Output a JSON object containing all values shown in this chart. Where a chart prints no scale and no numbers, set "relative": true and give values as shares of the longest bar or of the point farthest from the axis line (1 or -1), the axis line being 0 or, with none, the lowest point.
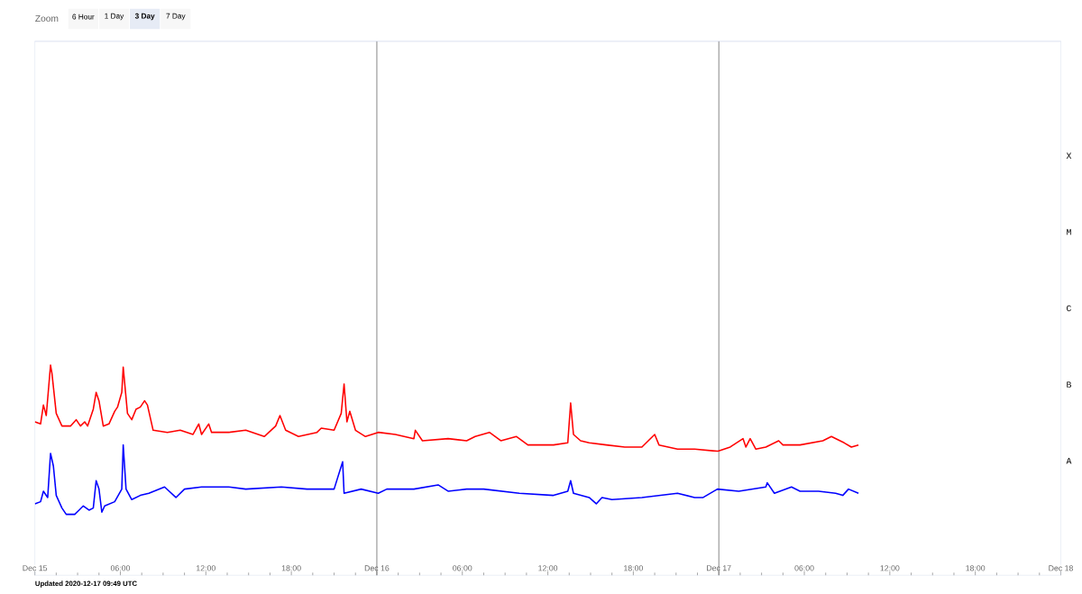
{
  "chart_data": {
    "type": "line",
    "relative": true,
    "marker": "none",
    "line_style": "solid",
    "xlim": [
      "2020-12-15T00:00",
      "2020-12-18T00:00"
    ],
    "xticks": [
      {
        "value": "2020-12-15T00:00",
        "label": "Dec 15"
      },
      {
        "value": "2020-12-15T06:00",
        "label": "06:00"
      },
      {
        "value": "2020-12-15T12:00",
        "label": "12:00"
      },
      {
        "value": "2020-12-15T18:00",
        "label": "18:00"
      },
      {
        "value": "2020-12-16T00:00",
        "label": "Dec 16"
      },
      {
        "value": "2020-12-16T06:00",
        "label": "06:00"
      },
      {
        "value": "2020-12-16T12:00",
        "label": "12:00"
      },
      {
        "value": "2020-12-16T18:00",
        "label": "18:00"
      },
      {
        "value": "2020-12-17T00:00",
        "label": "Dec 17"
      },
      {
        "value": "2020-12-17T06:00",
        "label": "06:00"
      },
      {
        "value": "2020-12-17T12:00",
        "label": "12:00"
      },
      {
        "value": "2020-12-17T18:00",
        "label": "18:00"
      },
      {
        "value": "2020-12-18T00:00",
        "label": "Dec 18"
      }
    ],
    "ref_lines": [
      {
        "axis": "x",
        "value": "2020-12-16T00:00",
        "color": "#666666"
      },
      {
        "axis": "x",
        "value": "2020-12-17T00:00",
        "color": "#666666"
      }
    ],
    "annotations": [
      "Zoom",
      "6 Hour",
      "1 Day",
      "3 Day",
      "7 Day",
      "Updated 2020-12-17 09:49 UTC",
      "A",
      "B",
      "C",
      "M",
      "X"
    ],
    "series": [
      {
        "color": "#ff0000",
        "x": [
          "2020-12-15T00:00",
          "2020-12-15T00:24",
          "2020-12-15T00:36",
          "2020-12-15T00:48",
          "2020-12-15T01:06",
          "2020-12-15T01:12",
          "2020-12-15T01:30",
          "2020-12-15T01:54",
          "2020-12-15T02:30",
          "2020-12-15T02:54",
          "2020-12-15T03:12",
          "2020-12-15T03:30",
          "2020-12-15T03:42",
          "2020-12-15T04:06",
          "2020-12-15T04:18",
          "2020-12-15T04:30",
          "2020-12-15T04:48",
          "2020-12-15T05:12",
          "2020-12-15T05:36",
          "2020-12-15T05:48",
          "2020-12-15T06:06",
          "2020-12-15T06:12",
          "2020-12-15T06:30",
          "2020-12-15T06:48",
          "2020-12-15T07:06",
          "2020-12-15T07:24",
          "2020-12-15T07:42",
          "2020-12-15T07:54",
          "2020-12-15T08:18",
          "2020-12-15T09:18",
          "2020-12-15T10:12",
          "2020-12-15T11:06",
          "2020-12-15T11:30",
          "2020-12-15T11:42",
          "2020-12-15T12:12",
          "2020-12-15T12:24",
          "2020-12-15T13:36",
          "2020-12-15T14:48",
          "2020-12-15T16:06",
          "2020-12-15T16:54",
          "2020-12-15T17:12",
          "2020-12-15T17:36",
          "2020-12-15T18:30",
          "2020-12-15T19:48",
          "2020-12-15T20:06",
          "2020-12-15T21:00",
          "2020-12-15T21:30",
          "2020-12-15T21:42",
          "2020-12-15T21:54",
          "2020-12-15T22:06",
          "2020-12-15T22:30",
          "2020-12-15T23:12",
          "2020-12-16T00:06",
          "2020-12-16T01:18",
          "2020-12-16T02:36",
          "2020-12-16T02:42",
          "2020-12-16T03:12",
          "2020-12-16T05:00",
          "2020-12-16T06:18",
          "2020-12-16T06:54",
          "2020-12-16T07:54",
          "2020-12-16T08:42",
          "2020-12-16T09:48",
          "2020-12-16T10:36",
          "2020-12-16T12:24",
          "2020-12-16T13:24",
          "2020-12-16T13:36",
          "2020-12-16T13:48",
          "2020-12-16T14:18",
          "2020-12-16T14:54",
          "2020-12-16T16:06",
          "2020-12-16T17:24",
          "2020-12-16T18:36",
          "2020-12-16T19:30",
          "2020-12-16T19:48",
          "2020-12-16T21:06",
          "2020-12-16T22:18",
          "2020-12-16T23:54",
          "2020-12-17T00:48",
          "2020-12-17T01:42",
          "2020-12-17T01:54",
          "2020-12-17T02:12",
          "2020-12-17T02:36",
          "2020-12-17T03:18",
          "2020-12-17T04:12",
          "2020-12-17T04:30",
          "2020-12-17T05:42",
          "2020-12-17T07:18",
          "2020-12-17T07:54",
          "2020-12-17T08:48",
          "2020-12-17T09:18",
          "2020-12-17T09:48"
        ],
        "values": [
          0.73,
          0.72,
          0.81,
          0.76,
          1.0,
          0.96,
          0.77,
          0.71,
          0.71,
          0.74,
          0.71,
          0.73,
          0.71,
          0.79,
          0.87,
          0.83,
          0.71,
          0.72,
          0.78,
          0.8,
          0.87,
          0.99,
          0.77,
          0.74,
          0.79,
          0.8,
          0.83,
          0.81,
          0.69,
          0.68,
          0.69,
          0.67,
          0.72,
          0.67,
          0.72,
          0.68,
          0.68,
          0.69,
          0.66,
          0.71,
          0.76,
          0.69,
          0.66,
          0.68,
          0.7,
          0.69,
          0.77,
          0.91,
          0.73,
          0.78,
          0.69,
          0.66,
          0.68,
          0.67,
          0.65,
          0.69,
          0.64,
          0.65,
          0.64,
          0.66,
          0.68,
          0.64,
          0.66,
          0.62,
          0.62,
          0.63,
          0.82,
          0.67,
          0.64,
          0.63,
          0.62,
          0.61,
          0.61,
          0.67,
          0.62,
          0.6,
          0.6,
          0.59,
          0.61,
          0.65,
          0.61,
          0.65,
          0.6,
          0.61,
          0.64,
          0.62,
          0.62,
          0.64,
          0.66,
          0.63,
          0.61,
          0.62
        ]
      },
      {
        "color": "#0000ff",
        "x": [
          "2020-12-15T00:00",
          "2020-12-15T00:24",
          "2020-12-15T00:36",
          "2020-12-15T00:54",
          "2020-12-15T01:06",
          "2020-12-15T01:18",
          "2020-12-15T01:30",
          "2020-12-15T01:54",
          "2020-12-15T02:12",
          "2020-12-15T02:48",
          "2020-12-15T03:06",
          "2020-12-15T03:24",
          "2020-12-15T03:48",
          "2020-12-15T04:06",
          "2020-12-15T04:18",
          "2020-12-15T04:30",
          "2020-12-15T04:42",
          "2020-12-15T04:54",
          "2020-12-15T05:36",
          "2020-12-15T06:06",
          "2020-12-15T06:12",
          "2020-12-15T06:24",
          "2020-12-15T06:48",
          "2020-12-15T07:24",
          "2020-12-15T08:00",
          "2020-12-15T09:06",
          "2020-12-15T09:54",
          "2020-12-15T10:30",
          "2020-12-15T11:42",
          "2020-12-15T13:36",
          "2020-12-15T14:48",
          "2020-12-15T17:18",
          "2020-12-15T19:06",
          "2020-12-15T21:00",
          "2020-12-15T21:36",
          "2020-12-15T21:42",
          "2020-12-15T22:54",
          "2020-12-16T00:06",
          "2020-12-16T00:42",
          "2020-12-16T02:36",
          "2020-12-16T04:18",
          "2020-12-16T05:00",
          "2020-12-16T06:18",
          "2020-12-16T07:30",
          "2020-12-16T10:00",
          "2020-12-16T12:24",
          "2020-12-16T13:24",
          "2020-12-16T13:36",
          "2020-12-16T13:48",
          "2020-12-16T14:54",
          "2020-12-16T15:24",
          "2020-12-16T15:48",
          "2020-12-16T16:30",
          "2020-12-16T18:36",
          "2020-12-16T21:06",
          "2020-12-16T22:18",
          "2020-12-16T22:54",
          "2020-12-16T23:54",
          "2020-12-17T01:24",
          "2020-12-17T03:18",
          "2020-12-17T03:24",
          "2020-12-17T03:54",
          "2020-12-17T05:06",
          "2020-12-17T05:42",
          "2020-12-17T07:00",
          "2020-12-17T08:12",
          "2020-12-17T08:42",
          "2020-12-17T09:06",
          "2020-12-17T09:48"
        ],
        "values": [
          0.34,
          0.35,
          0.4,
          0.37,
          0.58,
          0.52,
          0.38,
          0.32,
          0.29,
          0.29,
          0.31,
          0.33,
          0.31,
          0.32,
          0.45,
          0.41,
          0.3,
          0.33,
          0.35,
          0.41,
          0.62,
          0.41,
          0.36,
          0.38,
          0.39,
          0.42,
          0.37,
          0.41,
          0.42,
          0.42,
          0.41,
          0.42,
          0.41,
          0.41,
          0.54,
          0.39,
          0.41,
          0.39,
          0.41,
          0.41,
          0.43,
          0.4,
          0.41,
          0.41,
          0.39,
          0.38,
          0.4,
          0.45,
          0.39,
          0.37,
          0.34,
          0.37,
          0.36,
          0.37,
          0.39,
          0.37,
          0.37,
          0.41,
          0.4,
          0.42,
          0.44,
          0.39,
          0.42,
          0.4,
          0.4,
          0.39,
          0.38,
          0.41,
          0.39
        ]
      }
    ]
  }
}
